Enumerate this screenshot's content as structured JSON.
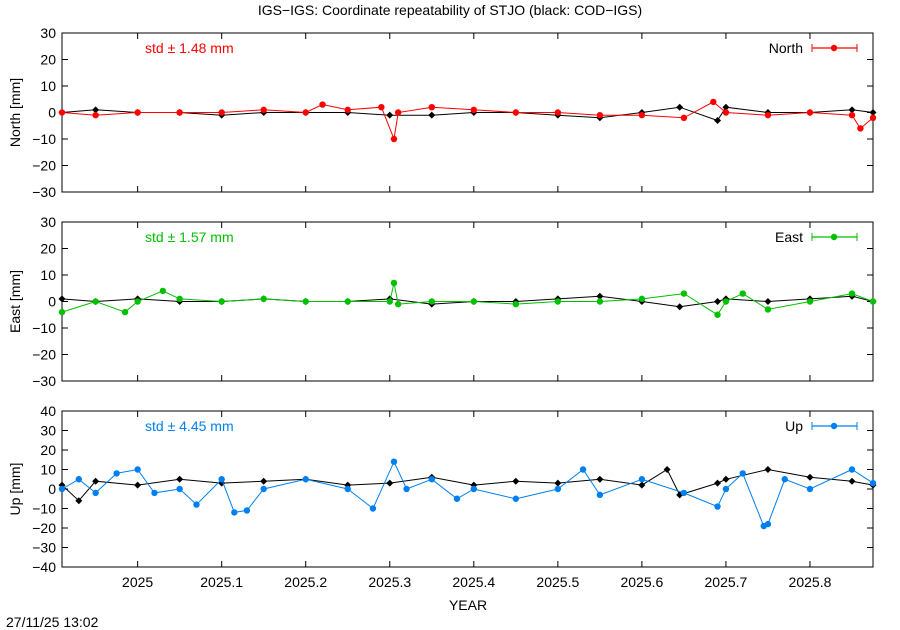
{
  "title": "IGS−IGS: Coordinate repeatability of STJO (black: COD−IGS)",
  "timestamp": "27/11/25 13:02",
  "xlabel": "YEAR",
  "x_ticks": [
    2025,
    2025.1,
    2025.2,
    2025.3,
    2025.4,
    2025.5,
    2025.6,
    2025.7,
    2025.8
  ],
  "x_tick_labels": [
    "2025",
    "2025.1",
    "2025.2",
    "2025.3",
    "2025.4",
    "2025.5",
    "2025.6",
    "2025.7",
    "2025.8"
  ],
  "chart_data": [
    {
      "type": "line",
      "component": "North",
      "ylabel": "North [mm]",
      "xlim": [
        2024.91,
        2025.875
      ],
      "ylim": [
        -30,
        30
      ],
      "y_ticks": [
        -30,
        -20,
        -10,
        0,
        10,
        20,
        30
      ],
      "y_tick_labels": [
        "−30",
        "−20",
        "−10",
        "0",
        "10",
        "20",
        "30"
      ],
      "legend": "North",
      "legend_position": "top-right",
      "std_label": "std ± 1.48 mm",
      "color": "#ff0000",
      "reference_color": "#000000",
      "series": [
        {
          "name": "North",
          "x": [
            2024.91,
            2024.95,
            2025.0,
            2025.05,
            2025.1,
            2025.15,
            2025.2,
            2025.22,
            2025.25,
            2025.29,
            2025.305,
            2025.31,
            2025.35,
            2025.4,
            2025.45,
            2025.5,
            2025.55,
            2025.6,
            2025.65,
            2025.685,
            2025.7,
            2025.75,
            2025.8,
            2025.85,
            2025.86,
            2025.875
          ],
          "y": [
            0,
            -1,
            0,
            0,
            0,
            1,
            0,
            3,
            1,
            2,
            -10,
            0,
            2,
            1,
            0,
            0,
            -1,
            -1,
            -2,
            4,
            0,
            -1,
            0,
            -1,
            -6,
            -2
          ]
        },
        {
          "name": "",
          "x": [
            2024.91,
            2024.95,
            2025.0,
            2025.05,
            2025.1,
            2025.15,
            2025.2,
            2025.25,
            2025.3,
            2025.35,
            2025.4,
            2025.45,
            2025.5,
            2025.55,
            2025.6,
            2025.645,
            2025.69,
            2025.7,
            2025.75,
            2025.8,
            2025.85,
            2025.875
          ],
          "y": [
            0,
            1,
            0,
            0,
            -1,
            0,
            0,
            0,
            -1,
            -1,
            0,
            0,
            -1,
            -2,
            0,
            2,
            -3,
            2,
            0,
            0,
            1,
            0
          ]
        }
      ]
    },
    {
      "type": "line",
      "component": "East",
      "ylabel": "East [mm]",
      "xlim": [
        2024.91,
        2025.875
      ],
      "ylim": [
        -30,
        30
      ],
      "y_ticks": [
        -30,
        -20,
        -10,
        0,
        10,
        20,
        30
      ],
      "y_tick_labels": [
        "−30",
        "−20",
        "−10",
        "0",
        "10",
        "20",
        "30"
      ],
      "legend": "East",
      "legend_position": "top-right",
      "std_label": "std ± 1.57 mm",
      "color": "#00c000",
      "reference_color": "#000000",
      "series": [
        {
          "name": "East",
          "x": [
            2024.91,
            2024.95,
            2024.985,
            2025.0,
            2025.03,
            2025.05,
            2025.1,
            2025.15,
            2025.2,
            2025.25,
            2025.3,
            2025.305,
            2025.31,
            2025.35,
            2025.4,
            2025.45,
            2025.5,
            2025.55,
            2025.6,
            2025.65,
            2025.69,
            2025.7,
            2025.72,
            2025.75,
            2025.8,
            2025.85,
            2025.875
          ],
          "y": [
            -4,
            0,
            -4,
            0,
            4,
            1,
            0,
            1,
            0,
            0,
            0,
            7,
            -1,
            0,
            0,
            -1,
            0,
            0,
            1,
            3,
            -5,
            0,
            3,
            -3,
            0,
            3,
            0
          ]
        },
        {
          "name": "",
          "x": [
            2024.91,
            2024.95,
            2025.0,
            2025.05,
            2025.1,
            2025.15,
            2025.2,
            2025.25,
            2025.3,
            2025.35,
            2025.4,
            2025.45,
            2025.5,
            2025.55,
            2025.6,
            2025.645,
            2025.69,
            2025.7,
            2025.75,
            2025.8,
            2025.85,
            2025.875
          ],
          "y": [
            1,
            0,
            1,
            0,
            0,
            1,
            0,
            0,
            1,
            -1,
            0,
            0,
            1,
            2,
            0,
            -2,
            0,
            1,
            0,
            1,
            2,
            0
          ]
        }
      ]
    },
    {
      "type": "line",
      "component": "Up",
      "ylabel": "Up [mm]",
      "xlim": [
        2024.91,
        2025.875
      ],
      "ylim": [
        -40,
        40
      ],
      "y_ticks": [
        -40,
        -30,
        -20,
        -10,
        0,
        10,
        20,
        30,
        40
      ],
      "y_tick_labels": [
        "−40",
        "−30",
        "−20",
        "−10",
        "0",
        "10",
        "20",
        "30",
        "40"
      ],
      "legend": "Up",
      "legend_position": "top-right",
      "std_label": "std ± 4.45 mm",
      "color": "#0080f0",
      "reference_color": "#000000",
      "series": [
        {
          "name": "Up",
          "x": [
            2024.91,
            2024.93,
            2024.95,
            2024.975,
            2025.0,
            2025.02,
            2025.05,
            2025.07,
            2025.1,
            2025.115,
            2025.13,
            2025.15,
            2025.2,
            2025.25,
            2025.28,
            2025.305,
            2025.32,
            2025.35,
            2025.38,
            2025.4,
            2025.45,
            2025.5,
            2025.53,
            2025.55,
            2025.6,
            2025.65,
            2025.69,
            2025.7,
            2025.72,
            2025.745,
            2025.75,
            2025.77,
            2025.8,
            2025.85,
            2025.875
          ],
          "y": [
            0,
            5,
            -2,
            8,
            10,
            -2,
            0,
            -8,
            5,
            -12,
            -11,
            0,
            5,
            0,
            -10,
            14,
            0,
            5,
            -5,
            0,
            -5,
            0,
            10,
            -3,
            5,
            -2,
            -9,
            0,
            8,
            -19,
            -18,
            5,
            0,
            10,
            3
          ]
        },
        {
          "name": "",
          "x": [
            2024.91,
            2024.93,
            2024.95,
            2025.0,
            2025.05,
            2025.1,
            2025.15,
            2025.2,
            2025.25,
            2025.3,
            2025.35,
            2025.4,
            2025.45,
            2025.5,
            2025.55,
            2025.6,
            2025.63,
            2025.645,
            2025.69,
            2025.7,
            2025.75,
            2025.8,
            2025.85,
            2025.875
          ],
          "y": [
            2,
            -6,
            4,
            2,
            5,
            3,
            4,
            5,
            2,
            3,
            6,
            2,
            4,
            3,
            5,
            2,
            10,
            -3,
            3,
            5,
            10,
            6,
            4,
            2
          ]
        }
      ]
    }
  ]
}
